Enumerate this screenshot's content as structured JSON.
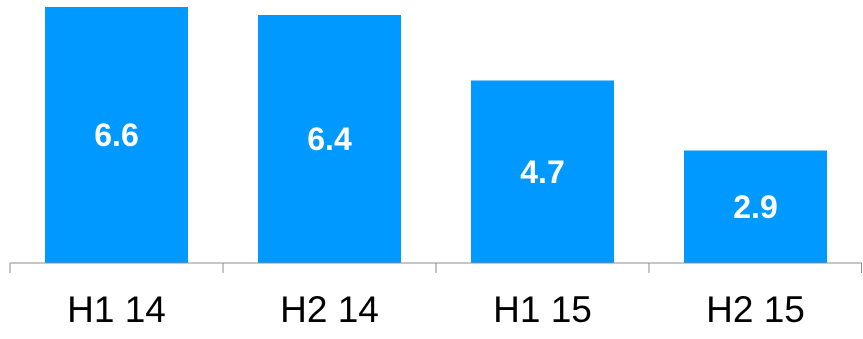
{
  "chart_data": {
    "type": "bar",
    "categories": [
      "H1 14",
      "H2 14",
      "H1 15",
      "H2 15"
    ],
    "values": [
      6.6,
      6.4,
      4.7,
      2.9
    ],
    "title": "",
    "xlabel": "",
    "ylabel": "",
    "ylim": [
      0,
      6.6
    ],
    "grid": false,
    "legend": "none",
    "bar_color": "#0099ff",
    "label_color": "#ffffff"
  }
}
